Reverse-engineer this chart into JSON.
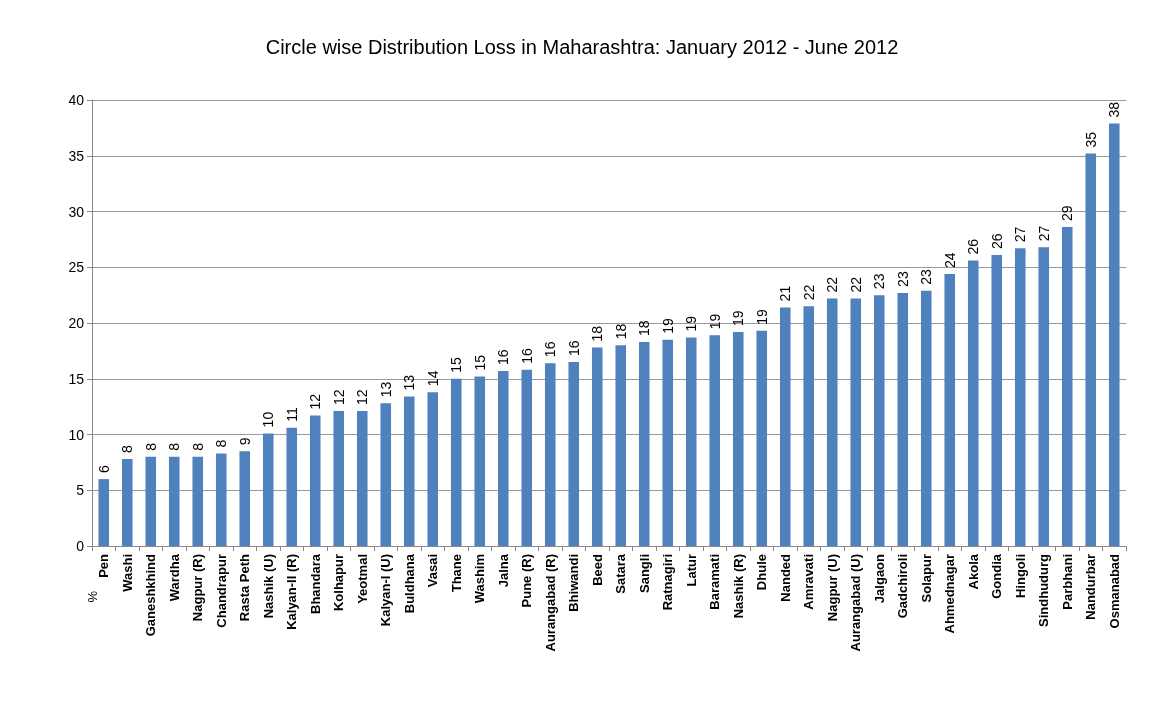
{
  "chart_data": {
    "type": "bar",
    "title": "Circle wise Distribution Loss in Maharashtra: January 2012 - June 2012",
    "ylabel": "%",
    "categories": [
      "Pen",
      "Washi",
      "Ganeshkhind",
      "Wardha",
      "Nagpur (R)",
      "Chandrapur",
      "Rasta Peth",
      "Nashik (U)",
      "Kalyan-II (R)",
      "Bhandara",
      "Kolhapur",
      "Yeotmal",
      "Kalyan-I (U)",
      "Buldhana",
      "Vasai",
      "Thane",
      "Washim",
      "Jalna",
      "Pune (R)",
      "Aurangabad (R)",
      "Bhiwandi",
      "Beed",
      "Satara",
      "Sangli",
      "Ratnagiri",
      "Latur",
      "Baramati",
      "Nashik (R)",
      "Dhule",
      "Nanded",
      "Amravati",
      "Nagpur (U)",
      "Aurangabad (U)",
      "Jalgaon",
      "Gadchiroli",
      "Solapur",
      "Ahmednagar",
      "Akola",
      "Gondia",
      "Hingoli",
      "Sindhudurg",
      "Parbhani",
      "Nandurbar",
      "Osmanabad"
    ],
    "values": [
      6.0,
      7.8,
      8.0,
      8.0,
      8.0,
      8.3,
      8.5,
      10.1,
      10.6,
      11.7,
      12.1,
      12.1,
      12.8,
      13.4,
      13.8,
      15.0,
      15.2,
      15.7,
      15.8,
      16.4,
      16.5,
      17.8,
      18.0,
      18.3,
      18.5,
      18.7,
      18.9,
      19.2,
      19.3,
      21.4,
      21.5,
      22.2,
      22.2,
      22.5,
      22.7,
      22.9,
      24.4,
      25.6,
      26.1,
      26.7,
      26.8,
      28.6,
      35.2,
      37.9
    ],
    "value_labels": [
      "6",
      "8",
      "8",
      "8",
      "8",
      "8",
      "9",
      "10",
      "11",
      "12",
      "12",
      "12",
      "13",
      "13",
      "14",
      "15",
      "15",
      "16",
      "16",
      "16",
      "16",
      "18",
      "18",
      "18",
      "19",
      "19",
      "19",
      "19",
      "19",
      "21",
      "22",
      "22",
      "22",
      "23",
      "23",
      "23",
      "24",
      "26",
      "26",
      "27",
      "27",
      "29",
      "35",
      "38"
    ],
    "color": "#4f81bd",
    "ylim": [
      0,
      40
    ],
    "yticks": [
      0,
      5,
      10,
      15,
      20,
      25,
      30,
      35,
      40
    ],
    "grid": "y"
  }
}
